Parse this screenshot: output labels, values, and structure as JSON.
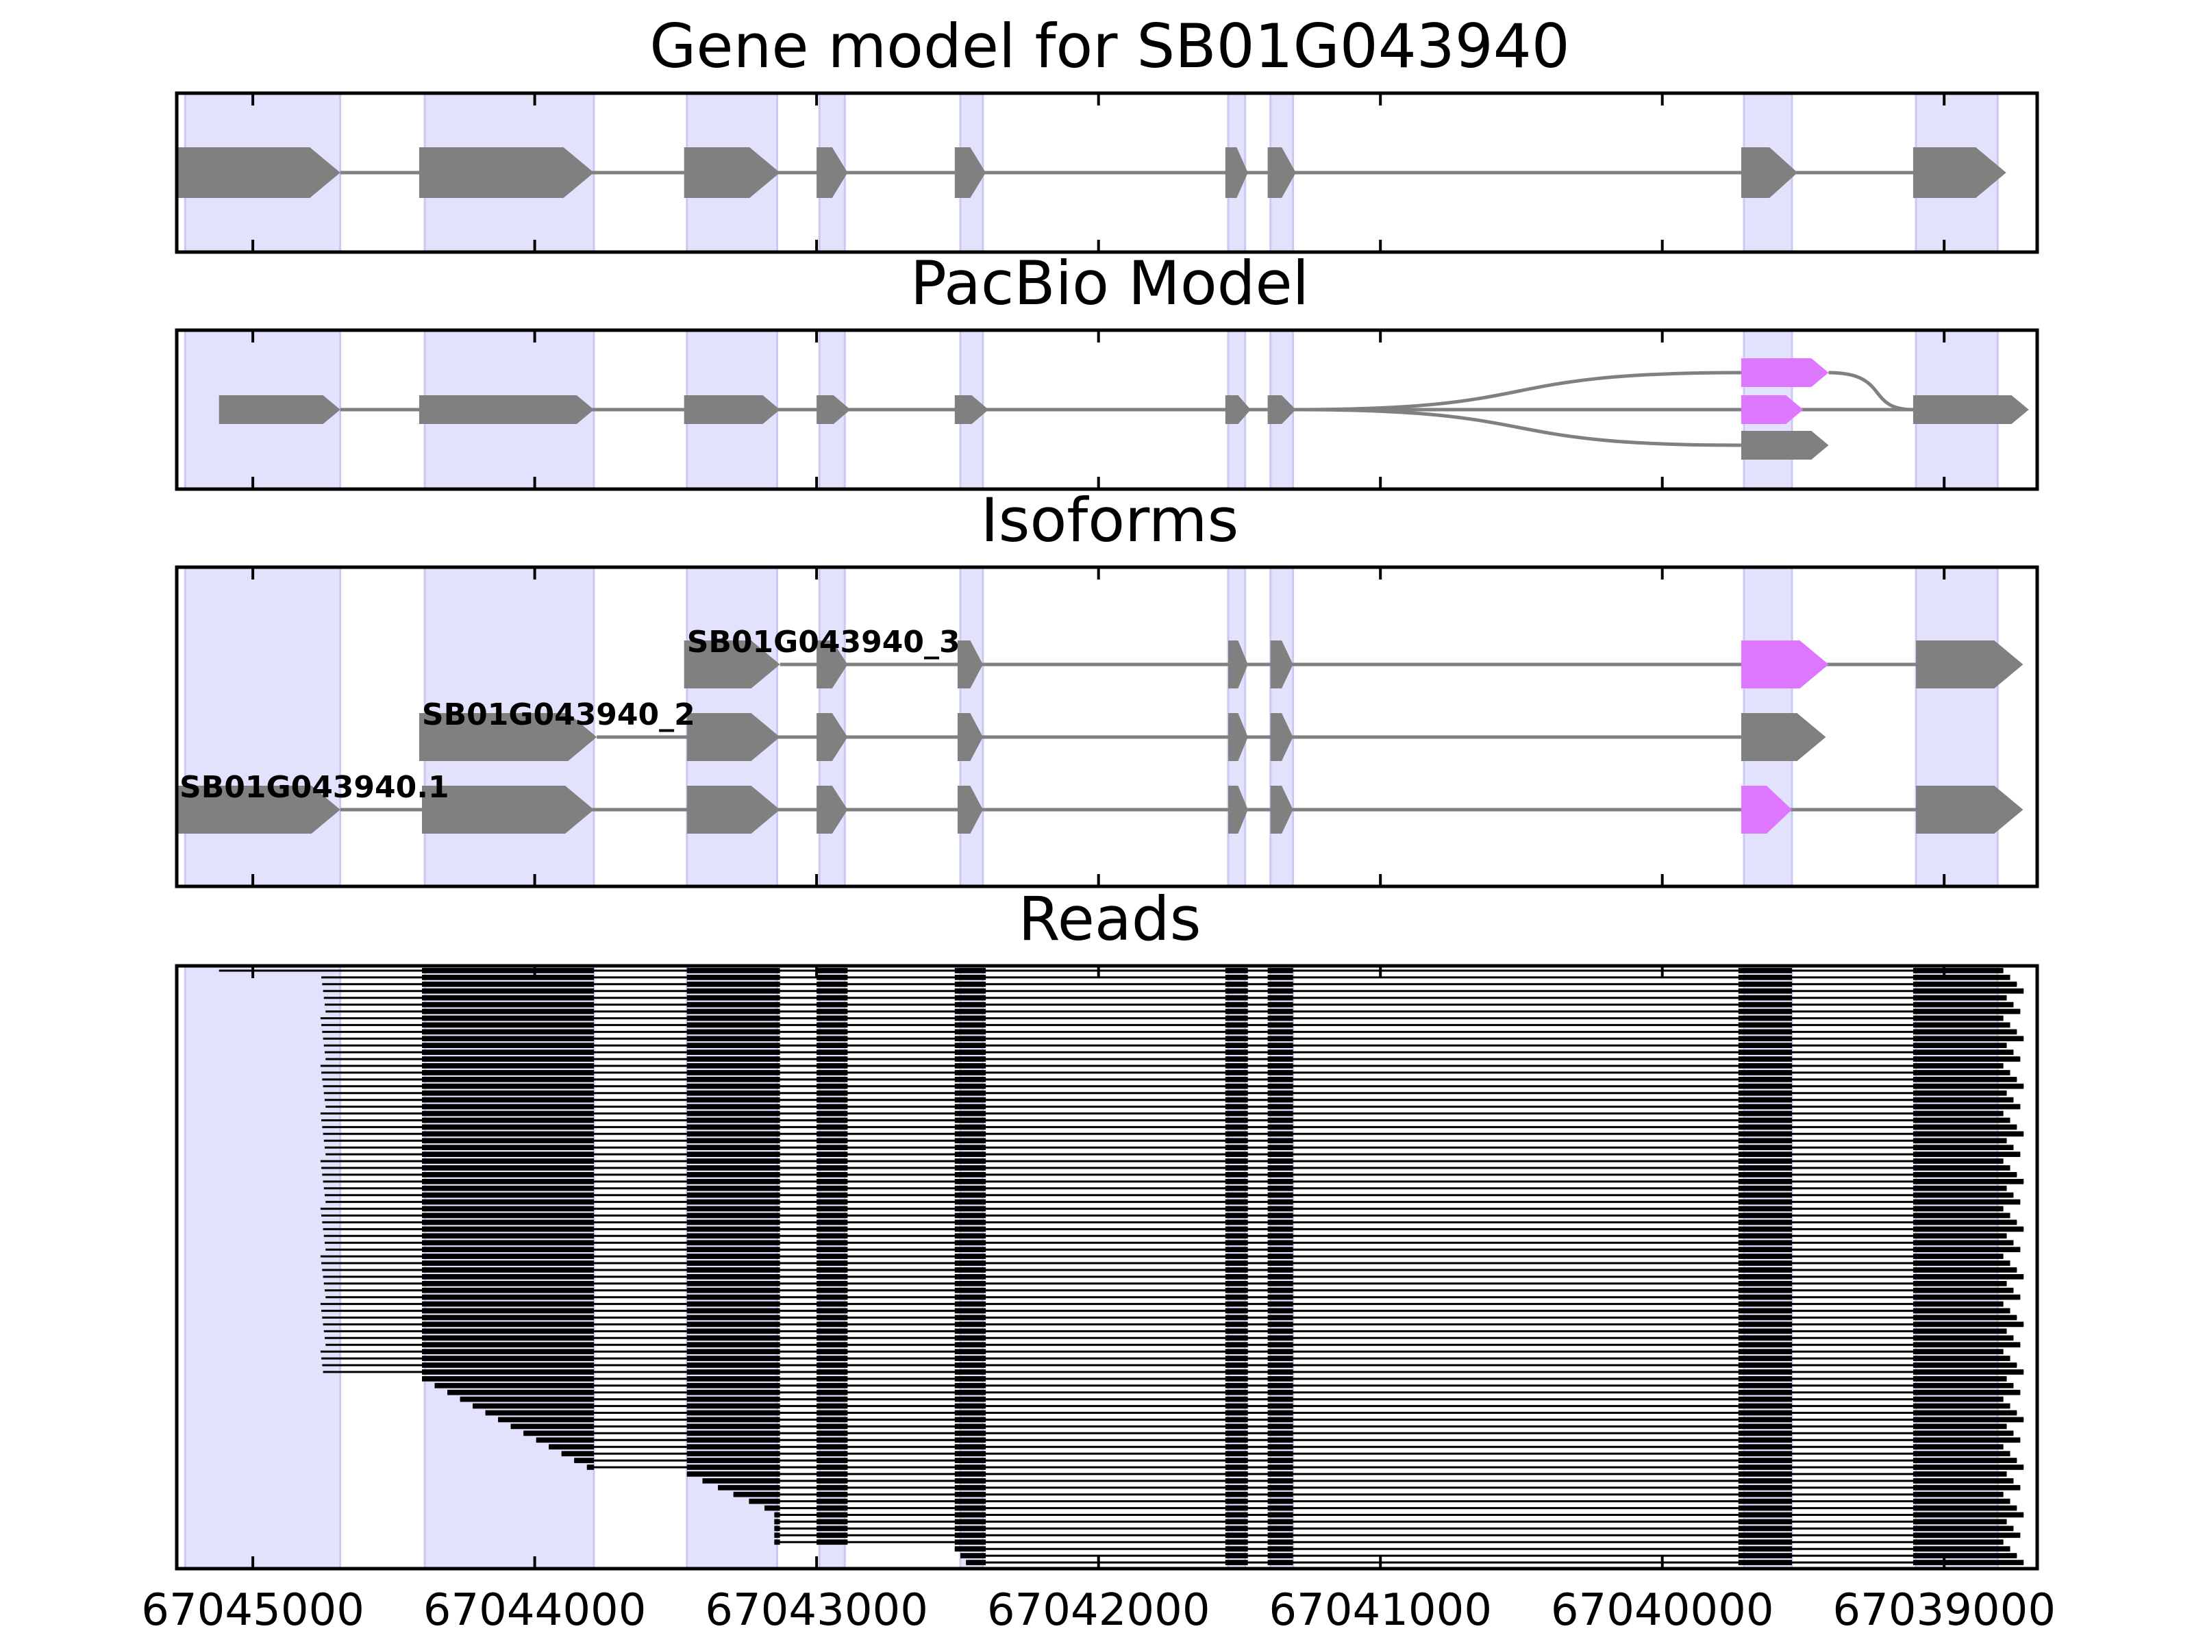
{
  "chart_data": {
    "type": "gene-track",
    "x_axis": {
      "orientation": "descending",
      "range": [
        67045270,
        67038670
      ],
      "ticks": [
        67045000,
        67044000,
        67043000,
        67042000,
        67041000,
        67040000,
        67039000
      ],
      "tick_labels": [
        "67045000",
        "67044000",
        "67043000",
        "67042000",
        "67041000",
        "67040000",
        "67039000"
      ]
    },
    "colors": {
      "exon": "#808080",
      "intron": "#808080",
      "highlight_exon": "#dd77ff",
      "exon_band": "#e2e2fd",
      "read": "#000000",
      "frame": "#000000"
    },
    "exon_bands": [
      [
        67045240,
        67044690
      ],
      [
        67044390,
        67043790
      ],
      [
        67043460,
        67043140
      ],
      [
        67042990,
        67042900
      ],
      [
        67042490,
        67042410
      ],
      [
        67041540,
        67041480
      ],
      [
        67041390,
        67041310
      ],
      [
        67039710,
        67039540
      ],
      [
        67039100,
        67038810
      ]
    ],
    "panels": [
      {
        "key": "gene_model",
        "title": "Gene model for SB01G043940",
        "tracks": [
          {
            "exons": [
              [
                67045270,
                67044690
              ],
              [
                67044410,
                67043790
              ],
              [
                67043470,
                67043130
              ],
              [
                67043000,
                67042890
              ],
              [
                67042510,
                67042400
              ],
              [
                67041550,
                67041470
              ],
              [
                67041400,
                67041300
              ],
              [
                67039720,
                67039520
              ],
              [
                67039110,
                67038780
              ]
            ],
            "highlight": []
          }
        ]
      },
      {
        "key": "pacbio_model",
        "title": "PacBio Model",
        "tracks": [
          {
            "exons": [
              [
                67045120,
                67044690
              ],
              [
                67044410,
                67043790
              ],
              [
                67043470,
                67043130
              ],
              [
                67043000,
                67042880
              ],
              [
                67042510,
                67042390
              ],
              [
                67041550,
                67041460
              ],
              [
                67041400,
                67041300
              ],
              [
                67039720,
                67039410
              ],
              [
                67039110,
                67038700
              ]
            ],
            "highlight": [
              7
            ],
            "branch": "upper"
          },
          {
            "exons": [
              [
                67039720,
                67039500
              ]
            ],
            "highlight": [
              0
            ],
            "branch": "middle"
          },
          {
            "exons": [
              [
                67039720,
                67039410
              ]
            ],
            "highlight": [],
            "branch": "lower"
          }
        ]
      },
      {
        "key": "isoforms",
        "title": "Isoforms",
        "tracks": [
          {
            "label": "SB01G043940.1",
            "exons": [
              [
                67045270,
                67044690
              ],
              [
                67044400,
                67043790
              ],
              [
                67043460,
                67043130
              ],
              [
                67043000,
                67042890
              ],
              [
                67042500,
                67042410
              ],
              [
                67041540,
                67041470
              ],
              [
                67041390,
                67041310
              ],
              [
                67039720,
                67039540
              ],
              [
                67039100,
                67038720
              ]
            ],
            "highlight": [
              7
            ]
          },
          {
            "label": "SB01G043940_2",
            "exons": [
              [
                67044410,
                67043780
              ],
              [
                67043460,
                67043130
              ],
              [
                67043000,
                67042890
              ],
              [
                67042500,
                67042410
              ],
              [
                67041540,
                67041470
              ],
              [
                67041390,
                67041310
              ],
              [
                67039720,
                67039420
              ]
            ],
            "highlight": []
          },
          {
            "label": "SB01G043940_3",
            "exons": [
              [
                67043470,
                67043130
              ],
              [
                67043000,
                67042890
              ],
              [
                67042500,
                67042410
              ],
              [
                67041540,
                67041470
              ],
              [
                67041390,
                67041310
              ],
              [
                67039720,
                67039410
              ],
              [
                67039100,
                67038720
              ]
            ],
            "highlight": [
              5
            ]
          }
        ]
      },
      {
        "key": "reads",
        "title": "Reads",
        "read_count": 88,
        "read_blocks": [
          [
            67044400,
            67043790
          ],
          [
            67043460,
            67043130
          ],
          [
            67043000,
            67042890
          ],
          [
            67042510,
            67042400
          ],
          [
            67041550,
            67041470
          ],
          [
            67041400,
            67041310
          ],
          [
            67039730,
            67039540
          ],
          [
            67039110,
            67038790
          ]
        ]
      }
    ]
  }
}
